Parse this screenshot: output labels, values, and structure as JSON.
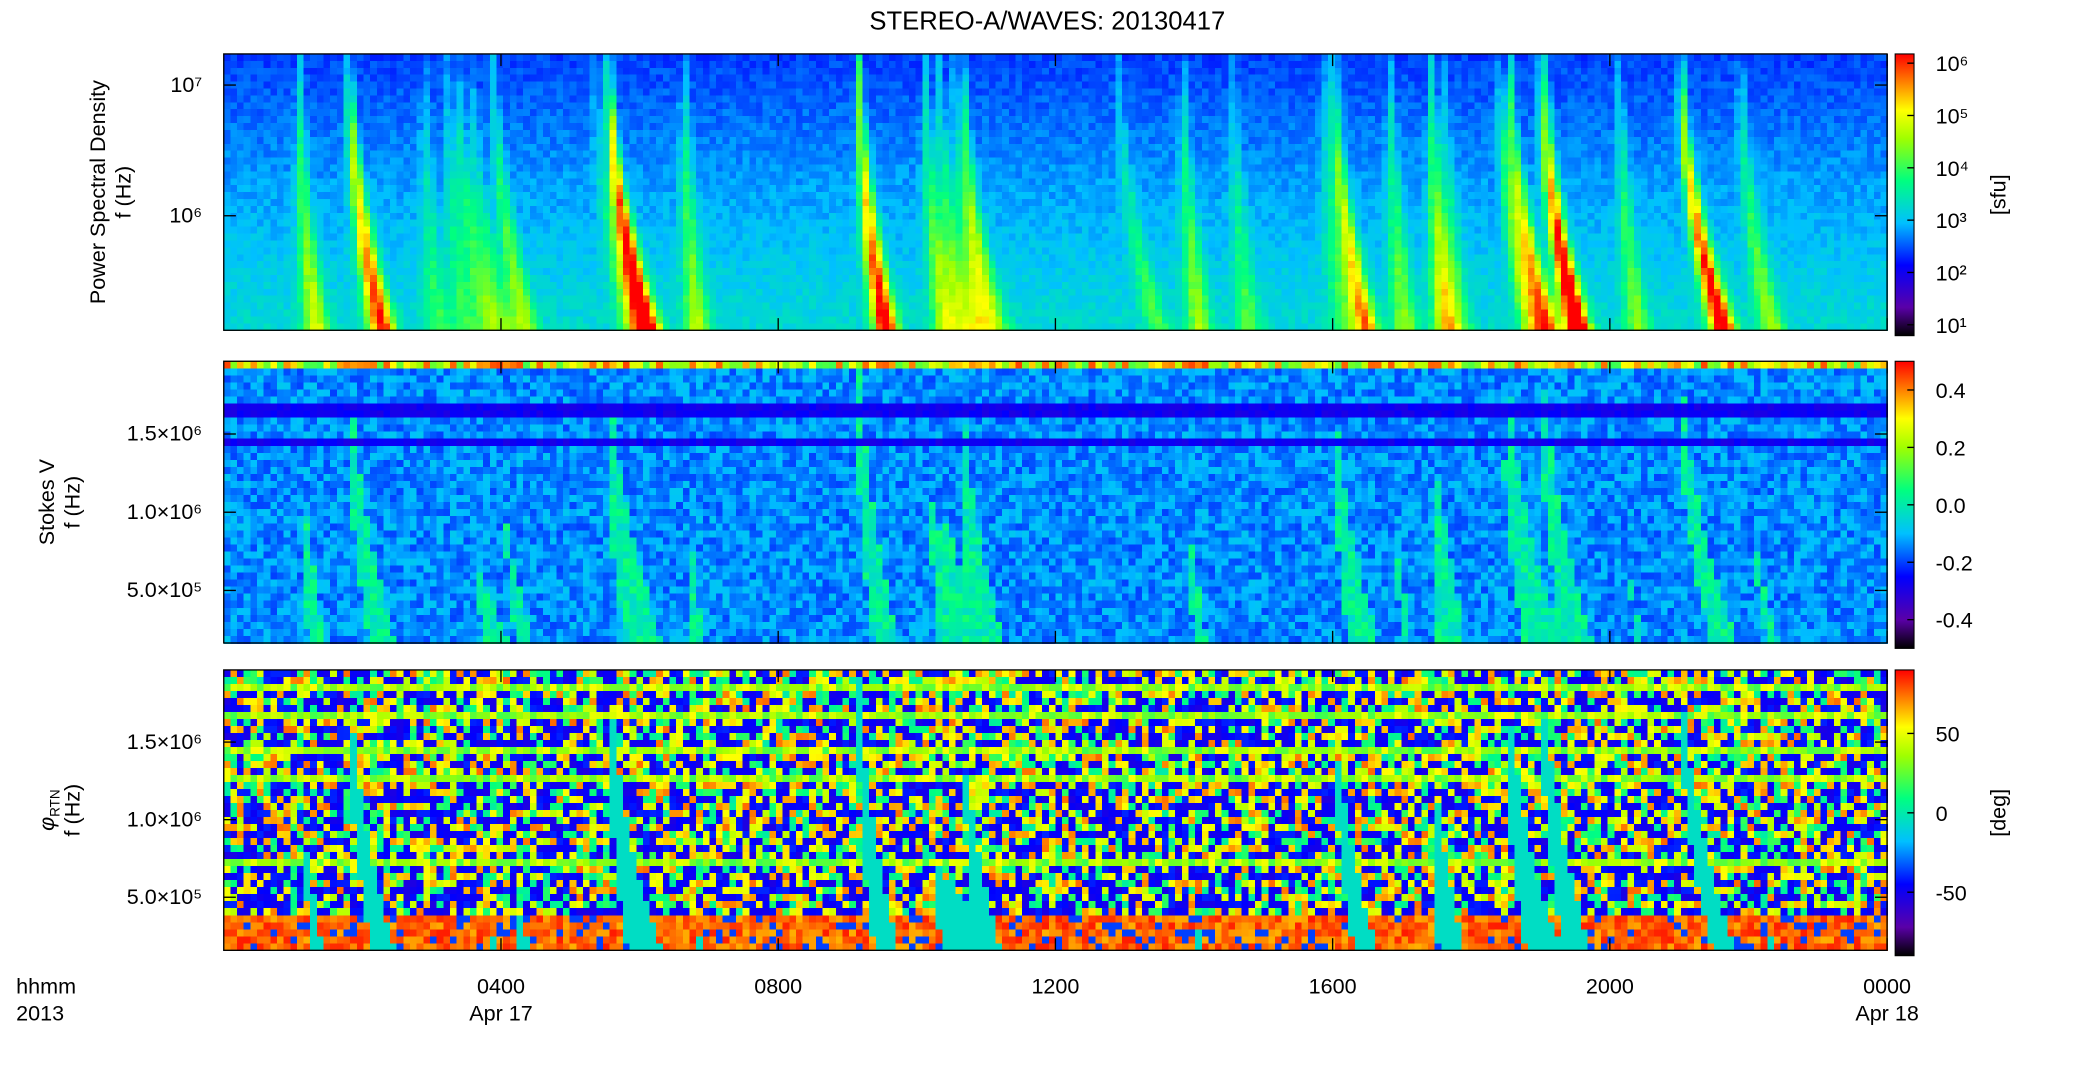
{
  "chart_data": [
    {
      "type": "heatmap",
      "title": "STEREO-A/WAVES: 20130417",
      "ylabel": [
        "Power Spectral Density",
        "f (Hz)"
      ],
      "ylog": true,
      "ylim": [
        133000,
        17300000
      ],
      "yticks": [
        {
          "value": 1000000,
          "label": "10⁶"
        },
        {
          "value": 10000000,
          "label": "10⁷"
        }
      ],
      "colormap": "rainbow",
      "colorbar": {
        "log": true,
        "clim": [
          6.2,
          1500000
        ],
        "label": "[sfu]",
        "ticks": [
          {
            "value": 10,
            "label": "10¹"
          },
          {
            "value": 100,
            "label": "10²"
          },
          {
            "value": 1000,
            "label": "10³"
          },
          {
            "value": 10000,
            "label": "10⁴"
          },
          {
            "value": 100000,
            "label": "10⁵"
          },
          {
            "value": 1000000,
            "label": "10⁶"
          }
        ]
      }
    },
    {
      "type": "heatmap",
      "ylabel": [
        "Stokes V",
        "f (Hz)"
      ],
      "ylog": false,
      "ylim": [
        164000,
        1965000
      ],
      "yticks": [
        {
          "value": 500000,
          "label": "5.0×10⁵"
        },
        {
          "value": 1000000,
          "label": "1.0×10⁶"
        },
        {
          "value": 1500000,
          "label": "1.5×10⁶"
        }
      ],
      "colormap": "rainbow",
      "colorbar": {
        "log": false,
        "clim": [
          -0.5,
          0.5
        ],
        "ticks": [
          -0.4,
          -0.2,
          {
            "value": 0,
            "label": "0.0"
          },
          0.2,
          0.4
        ]
      }
    },
    {
      "type": "heatmap",
      "ylabel": [
        "φ",
        "f (Hz)"
      ],
      "ylabel_subscript": "RTN",
      "ylog": false,
      "ylim": [
        158000,
        1965000
      ],
      "yticks": [
        {
          "value": 500000,
          "label": "5.0×10⁵"
        },
        {
          "value": 1000000,
          "label": "1.0×10⁶"
        },
        {
          "value": 1500000,
          "label": "1.5×10⁶"
        }
      ],
      "colormap": "rainbow",
      "colorbar": {
        "log": false,
        "clim": [
          -90,
          90
        ],
        "label": "[deg]",
        "ticks": [
          -50,
          0,
          50
        ]
      },
      "xlabel": [
        "hhmm",
        "2013"
      ],
      "xlim": [
        0,
        24
      ],
      "xticks": [
        {
          "value": 4,
          "label": "0400"
        },
        {
          "value": 8,
          "label": "0800"
        },
        {
          "value": 12,
          "label": "1200"
        },
        {
          "value": 16,
          "label": "1600"
        },
        {
          "value": 20,
          "label": "2000"
        },
        {
          "value": 24,
          "label": "0000"
        }
      ],
      "xdate_labels": [
        {
          "value": 4,
          "label": "Apr 17"
        },
        {
          "value": 24,
          "label": "Apr 18"
        }
      ]
    }
  ]
}
